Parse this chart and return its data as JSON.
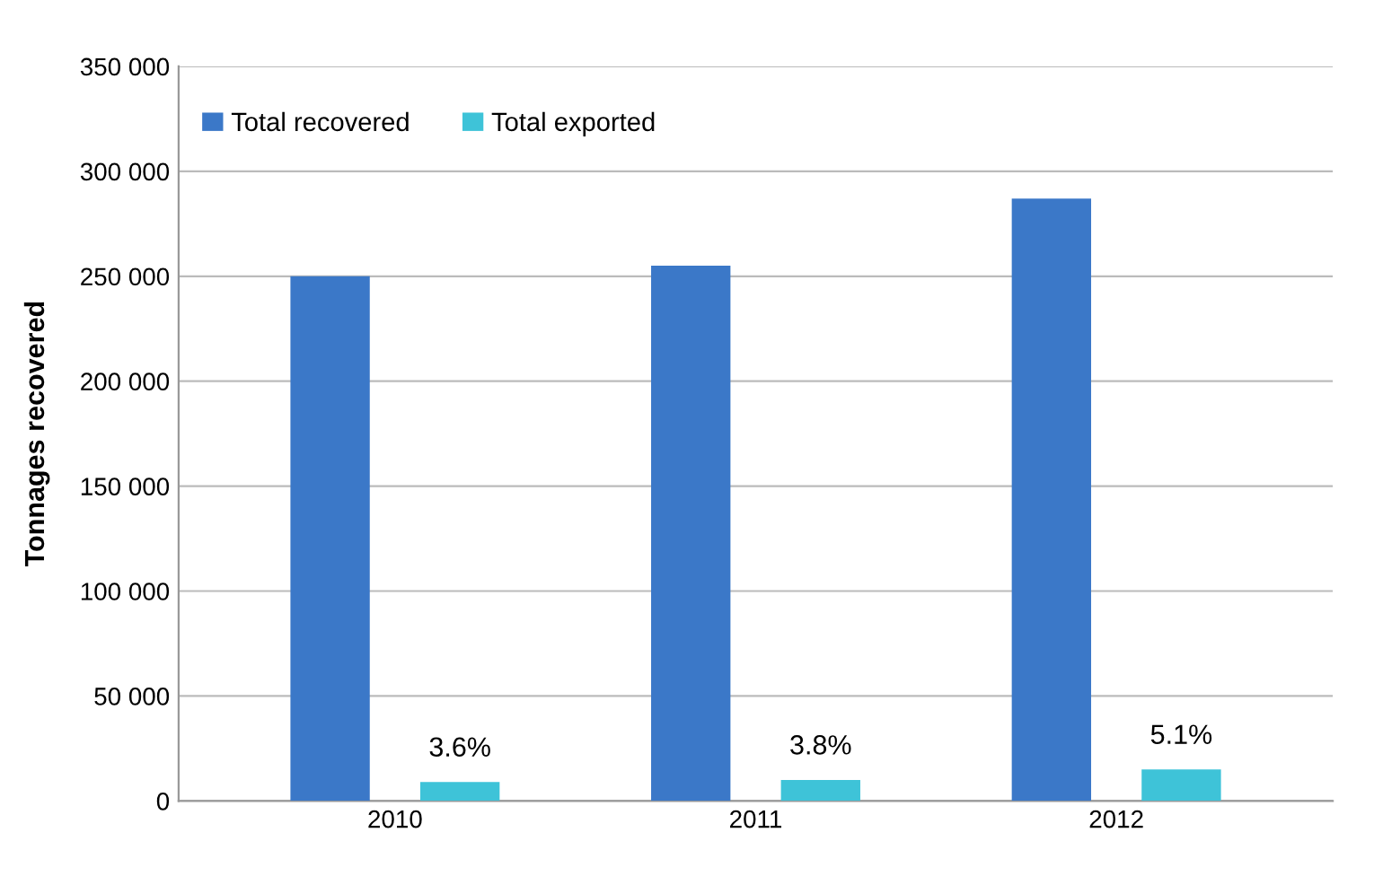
{
  "chart_data": {
    "type": "bar",
    "ylabel": "Tonnages recovered",
    "categories": [
      "2010",
      "2011",
      "2012"
    ],
    "series": [
      {
        "name": "Total recovered",
        "color": "#3b78c8",
        "values": [
          250000,
          255000,
          287000
        ]
      },
      {
        "name": "Total exported",
        "color": "#3ec3d8",
        "values": [
          9000,
          10000,
          15000
        ]
      }
    ],
    "annotations": [
      "3.6%",
      "3.8%",
      "5.1%"
    ],
    "ylim": [
      0,
      350000
    ],
    "yticks": [
      0,
      {
        "value": 50000,
        "label": "50 000"
      },
      {
        "value": 100000,
        "label": "100 000"
      },
      {
        "value": 150000,
        "label": "150 000"
      },
      {
        "value": 200000,
        "label": "200 000"
      },
      {
        "value": 250000,
        "label": "250 000"
      },
      {
        "value": 300000,
        "label": "300 000"
      },
      {
        "value": 350000,
        "label": "350 000"
      }
    ],
    "grid": "y",
    "legend": "top left"
  }
}
